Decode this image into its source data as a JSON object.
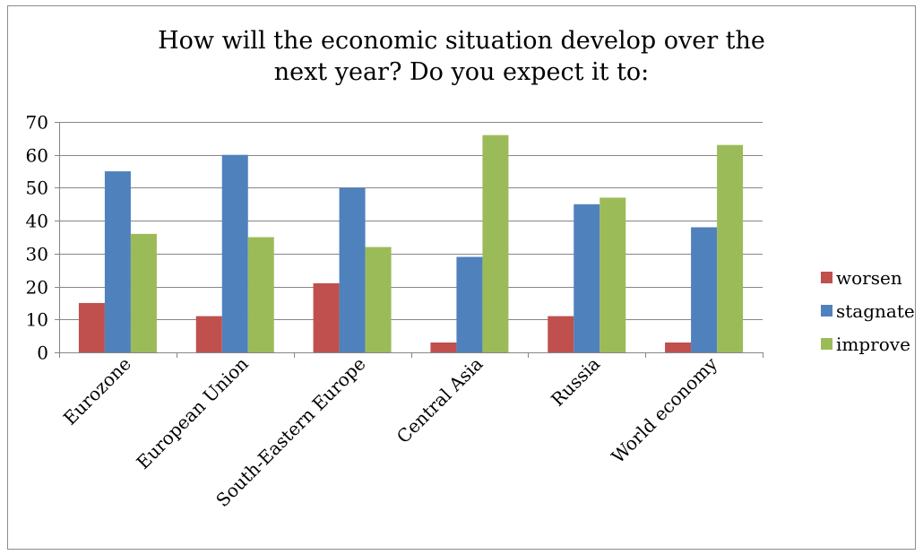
{
  "chart_data": {
    "type": "bar",
    "title": "How will the economic situation develop over the next year? Do you expect it to:",
    "categories": [
      "Eurozone",
      "European Union",
      "South-Eastern Europe",
      "Central Asia",
      "Russia",
      "World economy"
    ],
    "series": [
      {
        "name": "worsen",
        "color": "#c0504d",
        "values": [
          15,
          11,
          21,
          3,
          11,
          3
        ]
      },
      {
        "name": "stagnate",
        "color": "#4f81bd",
        "values": [
          55,
          60,
          50,
          29,
          45,
          38
        ]
      },
      {
        "name": "improve",
        "color": "#9bbb59",
        "values": [
          36,
          35,
          32,
          66,
          47,
          63
        ]
      }
    ],
    "ylim": [
      0,
      70
    ],
    "yticks": [
      0,
      10,
      20,
      30,
      40,
      50,
      60,
      70
    ],
    "grid": true,
    "legend_position": "right"
  }
}
